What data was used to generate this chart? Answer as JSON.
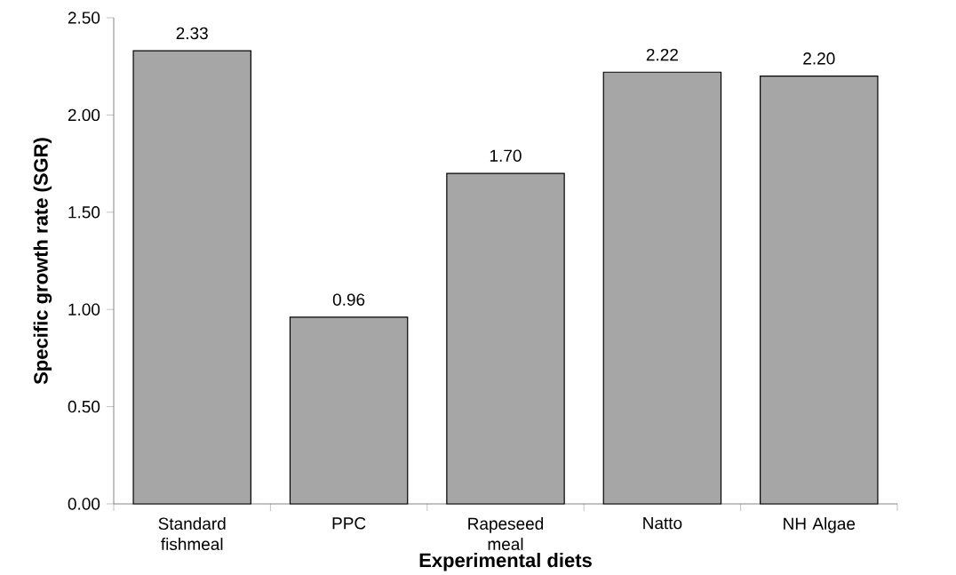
{
  "chart_data": {
    "type": "bar",
    "xlabel": "Experimental diets",
    "ylabel": "Specific growth rate (SGR)",
    "categories": [
      "Standard fishmeal",
      "PPC",
      "Rapeseed meal",
      "Natto",
      "NH Algae"
    ],
    "values": [
      2.33,
      0.96,
      1.7,
      2.22,
      2.2
    ],
    "value_labels": [
      "2.33",
      "0.96",
      "1.70",
      "2.22",
      "2.20"
    ],
    "color": "#a6a6a6",
    "ylim": [
      0,
      2.5
    ],
    "yticks": [
      {
        "value": 0,
        "label": "0.00"
      },
      {
        "value": 0.5,
        "label": "0.50"
      },
      {
        "value": 1,
        "label": "1.00"
      },
      {
        "value": 1.5,
        "label": "1.50"
      },
      {
        "value": 2,
        "label": "2.00"
      },
      {
        "value": 2.5,
        "label": "2.50"
      }
    ],
    "grid": false
  }
}
